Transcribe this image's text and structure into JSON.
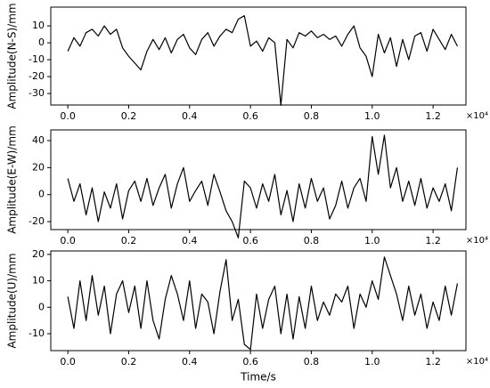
{
  "chart_data": [
    {
      "type": "line",
      "y_label": "Amplitude(N-S)/mm",
      "x_offset_label": "×10⁴",
      "color": "#000000",
      "x": [
        0,
        0.02,
        0.04,
        0.06,
        0.08,
        0.1,
        0.12,
        0.14,
        0.16,
        0.18,
        0.2,
        0.22,
        0.24,
        0.26,
        0.28,
        0.3,
        0.32,
        0.34,
        0.36,
        0.38,
        0.4,
        0.42,
        0.44,
        0.46,
        0.48,
        0.5,
        0.52,
        0.54,
        0.56,
        0.58,
        0.6,
        0.62,
        0.64,
        0.66,
        0.68,
        0.7,
        0.72,
        0.74,
        0.76,
        0.78,
        0.8,
        0.82,
        0.84,
        0.86,
        0.88,
        0.9,
        0.92,
        0.94,
        0.96,
        0.98,
        1,
        1.02,
        1.04,
        1.06,
        1.08,
        1.1,
        1.12,
        1.14,
        1.16,
        1.18,
        1.2,
        1.22,
        1.24,
        1.26,
        1.28
      ],
      "values": [
        -5,
        3,
        -2,
        6,
        8,
        4,
        10,
        5,
        8,
        -3,
        -8,
        -12,
        -16,
        -5,
        2,
        -4,
        3,
        -6,
        2,
        5,
        -3,
        -7,
        2,
        6,
        -2,
        4,
        8,
        6,
        14,
        16,
        -2,
        1,
        -5,
        3,
        0,
        -37,
        2,
        -3,
        6,
        4,
        7,
        3,
        5,
        2,
        4,
        -2,
        5,
        10,
        -3,
        -8,
        -20,
        5,
        -6,
        3,
        -14,
        2,
        -10,
        4,
        6,
        -5,
        8,
        2,
        -4,
        5,
        -2
      ],
      "xlim": [
        -0.056,
        1.308
      ],
      "xticks": [
        {
          "value": 0,
          "label": "0.0"
        },
        0.2,
        0.4,
        0.6,
        0.8,
        {
          "value": 1,
          "label": "1.0"
        },
        1.2
      ],
      "ylim": [
        -36.8,
        21.1
      ],
      "yticks": [
        -30,
        -20,
        -10,
        0,
        10
      ]
    },
    {
      "type": "line",
      "y_label": "Amplitude(E-W)/mm",
      "x_offset_label": "×10⁴",
      "color": "#000000",
      "x": [
        0,
        0.02,
        0.04,
        0.06,
        0.08,
        0.1,
        0.12,
        0.14,
        0.16,
        0.18,
        0.2,
        0.22,
        0.24,
        0.26,
        0.28,
        0.3,
        0.32,
        0.34,
        0.36,
        0.38,
        0.4,
        0.42,
        0.44,
        0.46,
        0.48,
        0.5,
        0.52,
        0.54,
        0.56,
        0.58,
        0.6,
        0.62,
        0.64,
        0.66,
        0.68,
        0.7,
        0.72,
        0.74,
        0.76,
        0.78,
        0.8,
        0.82,
        0.84,
        0.86,
        0.88,
        0.9,
        0.92,
        0.94,
        0.96,
        0.98,
        1,
        1.02,
        1.04,
        1.06,
        1.08,
        1.1,
        1.12,
        1.14,
        1.16,
        1.18,
        1.2,
        1.22,
        1.24,
        1.26,
        1.28
      ],
      "values": [
        12,
        -5,
        8,
        -15,
        5,
        -20,
        2,
        -10,
        8,
        -18,
        3,
        10,
        -5,
        12,
        -8,
        5,
        15,
        -10,
        8,
        20,
        -5,
        3,
        10,
        -8,
        15,
        2,
        -12,
        -20,
        -32,
        10,
        5,
        -10,
        8,
        -5,
        15,
        -15,
        3,
        -20,
        8,
        -10,
        12,
        -5,
        5,
        -18,
        -8,
        10,
        -10,
        5,
        12,
        -5,
        43,
        15,
        44,
        5,
        20,
        -5,
        10,
        -8,
        12,
        -10,
        5,
        -5,
        8,
        -12,
        20
      ],
      "xlim": [
        -0.056,
        1.308
      ],
      "xticks": [
        {
          "value": 0,
          "label": "0.0"
        },
        0.2,
        0.4,
        0.6,
        0.8,
        {
          "value": 1,
          "label": "1.0"
        },
        1.2
      ],
      "ylim": [
        -25.9,
        47.9
      ],
      "yticks": [
        -20,
        0,
        20,
        40
      ]
    },
    {
      "type": "line",
      "y_label": "Amplitude(U)/mm",
      "x_label": "Time/s",
      "x_offset_label": "×10⁴",
      "color": "#000000",
      "x": [
        0,
        0.02,
        0.04,
        0.06,
        0.08,
        0.1,
        0.12,
        0.14,
        0.16,
        0.18,
        0.2,
        0.22,
        0.24,
        0.26,
        0.28,
        0.3,
        0.32,
        0.34,
        0.36,
        0.38,
        0.4,
        0.42,
        0.44,
        0.46,
        0.48,
        0.5,
        0.52,
        0.54,
        0.56,
        0.58,
        0.6,
        0.62,
        0.64,
        0.66,
        0.68,
        0.7,
        0.72,
        0.74,
        0.76,
        0.78,
        0.8,
        0.82,
        0.84,
        0.86,
        0.88,
        0.9,
        0.92,
        0.94,
        0.96,
        0.98,
        1,
        1.02,
        1.04,
        1.06,
        1.08,
        1.1,
        1.12,
        1.14,
        1.16,
        1.18,
        1.2,
        1.22,
        1.24,
        1.26,
        1.28
      ],
      "values": [
        4,
        -8,
        10,
        -5,
        12,
        -3,
        8,
        -10,
        5,
        10,
        -2,
        8,
        -8,
        10,
        -5,
        -12,
        3,
        12,
        5,
        -5,
        10,
        -8,
        5,
        2,
        -10,
        6,
        18,
        -5,
        3,
        -14,
        -16,
        5,
        -8,
        3,
        8,
        -10,
        5,
        -12,
        4,
        -8,
        8,
        -5,
        2,
        -3,
        5,
        2,
        8,
        -8,
        5,
        0,
        10,
        3,
        19,
        12,
        5,
        -5,
        8,
        -3,
        5,
        -8,
        2,
        -5,
        8,
        -3,
        9
      ],
      "xlim": [
        -0.056,
        1.308
      ],
      "xticks": [
        {
          "value": 0,
          "label": "0.0"
        },
        0.2,
        0.4,
        0.6,
        0.8,
        {
          "value": 1,
          "label": "1.0"
        },
        1.2
      ],
      "ylim": [
        -16.4,
        21.3
      ],
      "yticks": [
        -10,
        0,
        10,
        20
      ]
    }
  ]
}
